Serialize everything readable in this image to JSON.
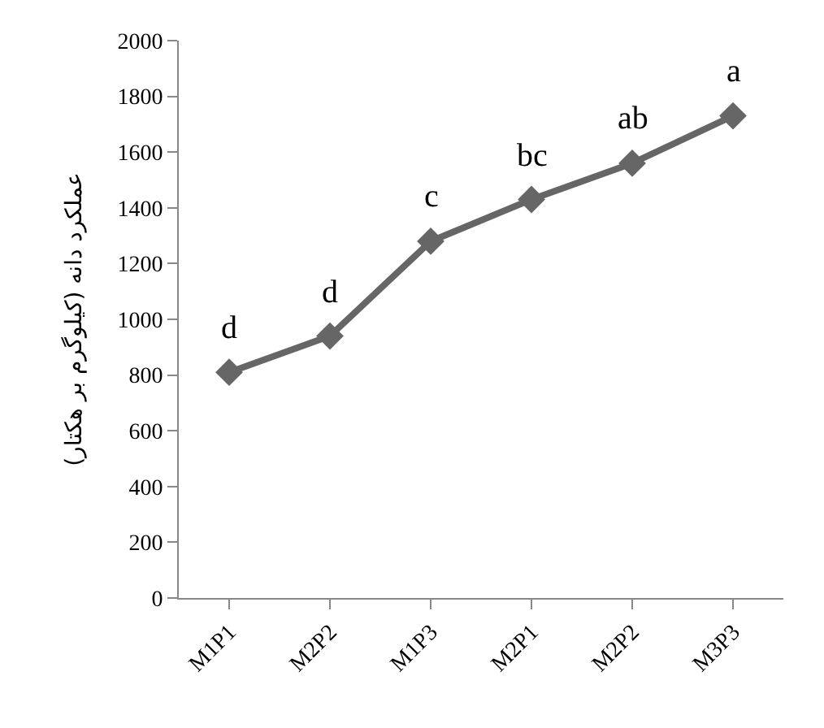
{
  "chart_data": {
    "type": "line",
    "ylabel": "عملکرد دانه (کیلوگرم بر هکتار)",
    "categories": [
      "M1P1",
      "M2P2",
      "M1P3",
      "M2P1",
      "M2P2",
      "M3P3"
    ],
    "series": [
      {
        "color": "#666666",
        "values": [
          810,
          940,
          1280,
          1430,
          1560,
          1730
        ],
        "value_labels": [
          "d",
          "d",
          "c",
          "bc",
          "ab",
          "a"
        ]
      }
    ],
    "ylim": [
      0,
      2000
    ],
    "yticks": [
      0,
      200,
      400,
      600,
      800,
      1000,
      1200,
      1400,
      1600,
      1800,
      2000
    ],
    "grid": false,
    "legend": false,
    "marker": "diamond",
    "line_style": "solid"
  }
}
